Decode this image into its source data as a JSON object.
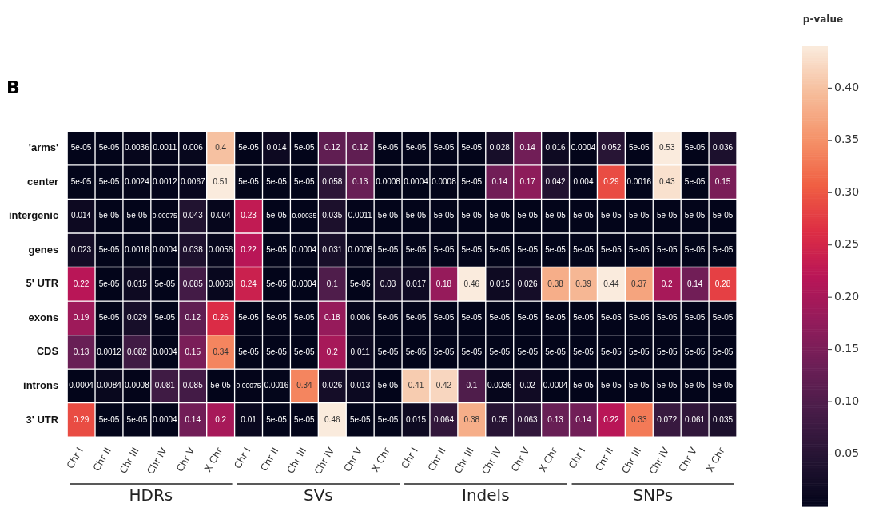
{
  "chart_data": {
    "type": "heatmap",
    "title": "B",
    "clabel": "p-value",
    "categories": [
      "Chr I",
      "Chr II",
      "Chr III",
      "Chr IV",
      "Chr V",
      "X Chr",
      "Chr I",
      "Chr II",
      "Chr III",
      "Chr IV",
      "Chr V",
      "X Chr",
      "Chr I",
      "Chr II",
      "Chr III",
      "Chr IV",
      "Chr V",
      "X Chr",
      "Chr I",
      "Chr II",
      "Chr III",
      "Chr IV",
      "Chr V",
      "X Chr"
    ],
    "y_categories": [
      "'arms'",
      "center",
      "intergenic",
      "genes",
      "5' UTR",
      "exons",
      "CDS",
      "introns",
      "3' UTR"
    ],
    "cells": [
      [
        5e-05,
        5e-05,
        0.0036,
        0.0011,
        0.006,
        0.4,
        5e-05,
        0.014,
        5e-05,
        0.12,
        0.12,
        5e-05,
        5e-05,
        5e-05,
        5e-05,
        0.028,
        0.14,
        0.016,
        0.0004,
        0.052,
        5e-05,
        0.53,
        5e-05,
        0.036
      ],
      [
        5e-05,
        5e-05,
        0.0024,
        0.0012,
        0.0067,
        0.51,
        5e-05,
        5e-05,
        5e-05,
        0.058,
        0.13,
        0.0008,
        0.0004,
        0.0008,
        5e-05,
        0.14,
        0.17,
        0.042,
        0.004,
        0.29,
        0.0016,
        0.43,
        5e-05,
        0.15
      ],
      [
        0.014,
        5e-05,
        5e-05,
        0.00075,
        0.043,
        0.004,
        0.23,
        5e-05,
        0.00035,
        0.035,
        0.0011,
        5e-05,
        5e-05,
        5e-05,
        5e-05,
        5e-05,
        5e-05,
        5e-05,
        5e-05,
        5e-05,
        5e-05,
        5e-05,
        5e-05,
        5e-05
      ],
      [
        0.023,
        5e-05,
        0.0016,
        0.0004,
        0.038,
        0.0056,
        0.22,
        5e-05,
        0.0004,
        0.031,
        0.0008,
        5e-05,
        5e-05,
        5e-05,
        5e-05,
        5e-05,
        5e-05,
        5e-05,
        5e-05,
        5e-05,
        5e-05,
        5e-05,
        5e-05,
        5e-05
      ],
      [
        0.22,
        5e-05,
        0.015,
        5e-05,
        0.085,
        0.0068,
        0.24,
        5e-05,
        0.0004,
        0.1,
        5e-05,
        0.03,
        0.017,
        0.18,
        0.46,
        0.015,
        0.026,
        0.38,
        0.39,
        0.44,
        0.37,
        0.2,
        0.14,
        0.28
      ],
      [
        0.19,
        5e-05,
        0.029,
        5e-05,
        0.12,
        0.26,
        5e-05,
        5e-05,
        5e-05,
        0.18,
        0.006,
        5e-05,
        5e-05,
        5e-05,
        5e-05,
        5e-05,
        5e-05,
        5e-05,
        5e-05,
        5e-05,
        5e-05,
        5e-05,
        5e-05,
        5e-05
      ],
      [
        0.13,
        0.0012,
        0.082,
        0.0004,
        0.15,
        0.34,
        5e-05,
        5e-05,
        5e-05,
        0.2,
        0.011,
        5e-05,
        5e-05,
        5e-05,
        5e-05,
        5e-05,
        5e-05,
        5e-05,
        5e-05,
        5e-05,
        5e-05,
        5e-05,
        5e-05,
        5e-05
      ],
      [
        0.0004,
        0.0084,
        0.0008,
        0.081,
        0.085,
        5e-05,
        0.00075,
        0.0016,
        0.34,
        0.026,
        0.013,
        5e-05,
        0.41,
        0.42,
        0.1,
        0.0036,
        0.02,
        0.0004,
        5e-05,
        5e-05,
        5e-05,
        5e-05,
        5e-05,
        5e-05
      ],
      [
        0.29,
        5e-05,
        5e-05,
        0.0004,
        0.14,
        0.2,
        0.01,
        5e-05,
        5e-05,
        0.46,
        5e-05,
        5e-05,
        0.015,
        0.064,
        0.38,
        0.05,
        0.063,
        0.13,
        0.14,
        0.22,
        0.33,
        0.072,
        0.061,
        0.035
      ]
    ],
    "clim": [
      0,
      0.44
    ],
    "cticks": [
      0.05,
      {
        "value": 0.1,
        "label": "0.10"
      },
      0.15,
      {
        "value": 0.2,
        "label": "0.20"
      },
      0.25,
      {
        "value": 0.3,
        "label": "0.30"
      },
      0.35,
      {
        "value": 0.4,
        "label": "0.40"
      }
    ],
    "data_labels": true,
    "annotations": [
      "HDRs",
      "SVs",
      "Indels",
      "SNPs"
    ]
  }
}
